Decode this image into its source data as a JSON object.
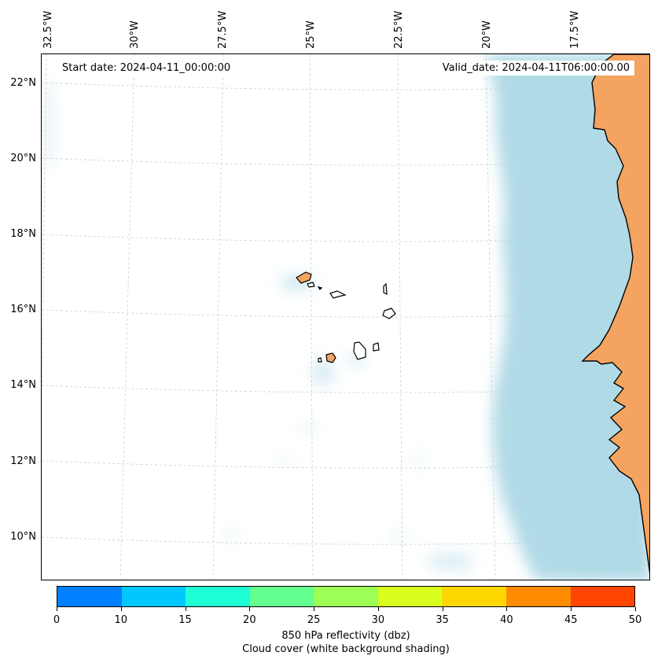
{
  "map": {
    "start_date": "Start date: 2024-04-11_00:00:00",
    "valid_date": "Valid_date: 2024-04-11T06:00:00.00",
    "lon_labels": [
      "32.5°W",
      "30°W",
      "27.5°W",
      "25°W",
      "22.5°W",
      "20°W",
      "17.5°W"
    ],
    "lat_labels": [
      "22°N",
      "20°N",
      "18°N",
      "16°N",
      "14°N",
      "12°N",
      "10°N"
    ],
    "land_color": "#f4a460",
    "cloud_color": "#add8e6"
  },
  "colorbar": {
    "ticks": [
      "0",
      "10",
      "15",
      "20",
      "25",
      "30",
      "35",
      "40",
      "45",
      "50"
    ],
    "colors": [
      "#0080ff",
      "#00c8ff",
      "#1effd6",
      "#63ff8f",
      "#9bff55",
      "#d8ff1e",
      "#ffd700",
      "#ff8c00",
      "#ff4500"
    ],
    "label_line1": "850 hPa reflectivity (dbz)",
    "label_line2": "Cloud cover (white background shading)"
  }
}
